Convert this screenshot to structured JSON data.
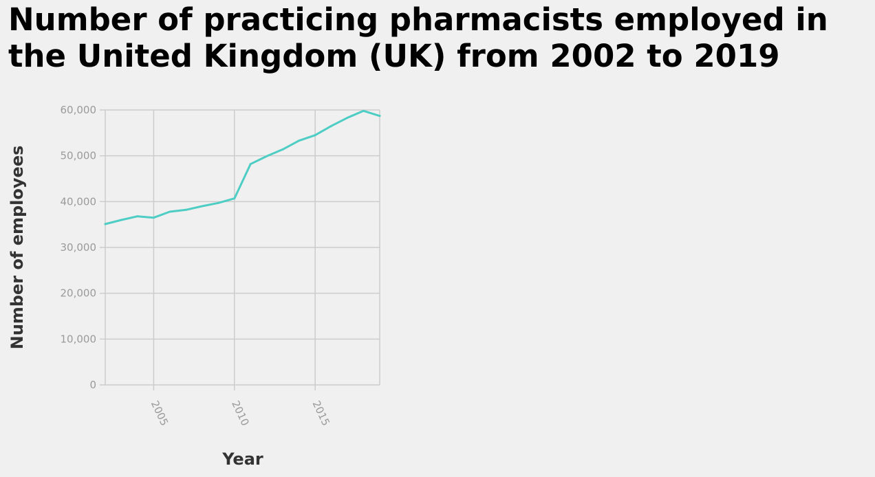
{
  "chart_data": {
    "type": "line",
    "title": "Number of practicing pharmacists employed in the United Kingdom (UK) from 2002 to 2019",
    "xlabel": "Year",
    "ylabel": "Number of employees",
    "xlim": [
      2002,
      2019
    ],
    "ylim": [
      0,
      60000
    ],
    "x_ticks": [
      2005,
      2010,
      2015
    ],
    "x_tick_labels": [
      "2005",
      "2010",
      "2015"
    ],
    "y_ticks": [
      0,
      10000,
      20000,
      30000,
      40000,
      50000,
      60000
    ],
    "y_tick_labels": [
      "0",
      "10,000",
      "20,000",
      "30,000",
      "40,000",
      "50,000",
      "60,000"
    ],
    "grid": true,
    "legend": "none",
    "series": [
      {
        "color": "#4ecdc4",
        "x": [
          2002,
          2003,
          2004,
          2005,
          2006,
          2007,
          2008,
          2009,
          2010,
          2011,
          2012,
          2013,
          2014,
          2015,
          2016,
          2017,
          2018,
          2019
        ],
        "values": [
          35100,
          36000,
          36800,
          36500,
          37800,
          38200,
          39000,
          39700,
          40700,
          48200,
          49900,
          51400,
          53300,
          54500,
          56500,
          58300,
          59800,
          58700
        ]
      }
    ]
  }
}
